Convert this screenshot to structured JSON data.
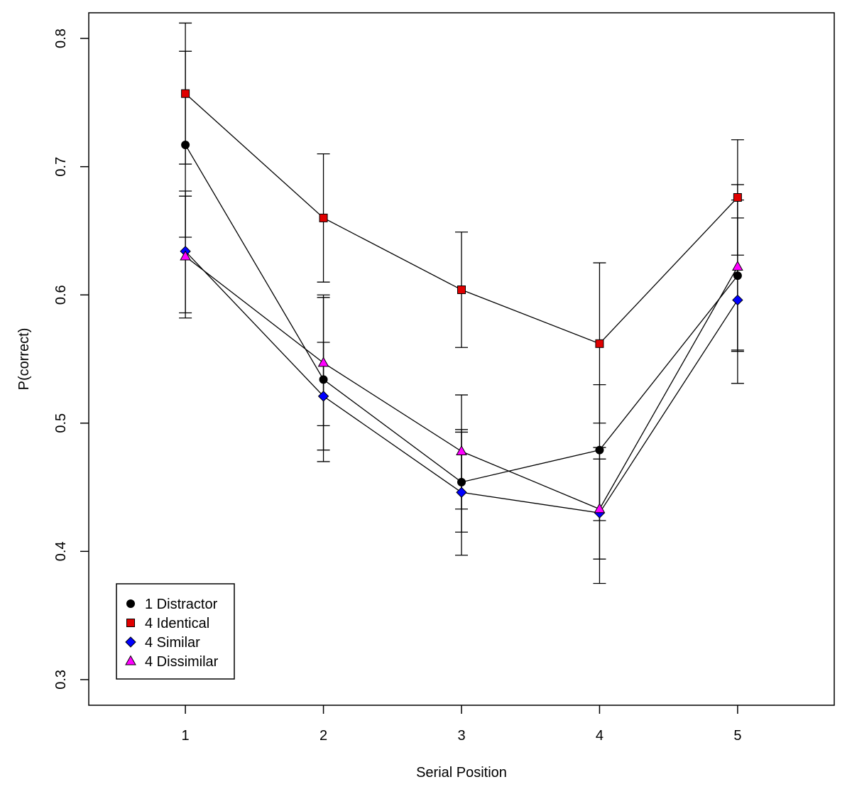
{
  "chart_data": {
    "type": "line",
    "title": "",
    "xlabel": "Serial Position",
    "ylabel": "P(correct)",
    "x": [
      1,
      2,
      3,
      4,
      5
    ],
    "x_tick_labels": [
      "1",
      "2",
      "3",
      "4",
      "5"
    ],
    "xlim": [
      0.3,
      5.7
    ],
    "ylim": [
      0.28,
      0.82
    ],
    "y_ticks": [
      0.3,
      0.4,
      0.5,
      0.6,
      0.7,
      0.8
    ],
    "y_tick_labels": [
      "0.3",
      "0.4",
      "0.5",
      "0.6",
      "0.7",
      "0.8"
    ],
    "grid": false,
    "legend_position": "bottom-left",
    "series": [
      {
        "name": "1 Distractor",
        "marker": "circle",
        "color": "#000000",
        "values": [
          0.717,
          0.534,
          0.454,
          0.479,
          0.615
        ],
        "ci_low": [
          0.645,
          0.47,
          0.397,
          0.424,
          0.556
        ],
        "ci_high": [
          0.79,
          0.598,
          0.495,
          0.53,
          0.674
        ]
      },
      {
        "name": "4 Identical",
        "marker": "square",
        "color": "#e00000",
        "values": [
          0.757,
          0.66,
          0.604,
          0.562,
          0.676
        ],
        "ci_low": [
          0.702,
          0.61,
          0.559,
          0.5,
          0.631
        ],
        "ci_high": [
          0.812,
          0.71,
          0.649,
          0.625,
          0.721
        ]
      },
      {
        "name": "4 Similar",
        "marker": "diamond",
        "color": "#0000ff",
        "values": [
          0.634,
          0.521,
          0.446,
          0.43,
          0.596
        ],
        "ci_low": [
          0.582,
          0.479,
          0.415,
          0.375,
          0.531
        ],
        "ci_high": [
          0.681,
          0.563,
          0.493,
          0.481,
          0.66
        ]
      },
      {
        "name": "4 Dissimilar",
        "marker": "triangle",
        "color": "#ff00ff",
        "values": [
          0.63,
          0.547,
          0.478,
          0.433,
          0.622
        ],
        "ci_low": [
          0.586,
          0.498,
          0.433,
          0.394,
          0.557
        ],
        "ci_high": [
          0.677,
          0.6,
          0.522,
          0.472,
          0.686
        ]
      }
    ]
  }
}
